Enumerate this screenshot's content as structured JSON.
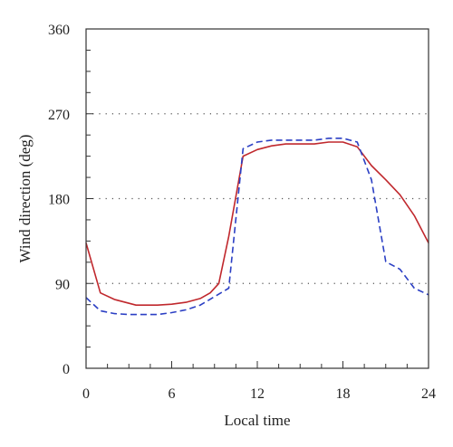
{
  "chart_data": {
    "type": "line",
    "title": "",
    "xlabel": "Local time",
    "ylabel": "Wind direction (deg)",
    "xlim": [
      0,
      24
    ],
    "ylim": [
      0,
      360
    ],
    "x_ticks": [
      0,
      6,
      12,
      18,
      24
    ],
    "x_tick_labels": [
      "0",
      "6",
      "12",
      "18",
      "24"
    ],
    "y_ticks": [
      0,
      90,
      180,
      270,
      360
    ],
    "y_tick_labels": [
      "0",
      "90",
      "180",
      "270",
      "360"
    ],
    "horizontal_dotted_gridlines_at": [
      90,
      180,
      270
    ],
    "legend": "none",
    "series": [
      {
        "color": "#c0282d",
        "style": "solid",
        "x": [
          0,
          1,
          2,
          3.5,
          5,
          6,
          7,
          8,
          8.7,
          9.3,
          10,
          11,
          12,
          13,
          14,
          15,
          16,
          17,
          18,
          19,
          20,
          21,
          22,
          23,
          24
        ],
        "y": [
          133,
          80,
          73,
          67,
          67,
          68,
          70,
          74,
          80,
          90,
          140,
          225,
          232,
          236,
          238,
          238,
          238,
          240,
          240,
          235,
          215,
          200,
          184,
          162,
          133
        ]
      },
      {
        "color": "#2b3fc4",
        "style": "dashed",
        "x": [
          0,
          1,
          2,
          3,
          4,
          5,
          6,
          7,
          8,
          9,
          10,
          11,
          12,
          13,
          14,
          15,
          16,
          17,
          18,
          19,
          20,
          21,
          22,
          23,
          24
        ],
        "y": [
          75,
          61,
          58,
          57,
          57,
          57,
          59,
          62,
          67,
          76,
          85,
          233,
          240,
          242,
          242,
          242,
          242,
          244,
          244,
          240,
          200,
          113,
          105,
          85,
          78
        ]
      }
    ]
  }
}
